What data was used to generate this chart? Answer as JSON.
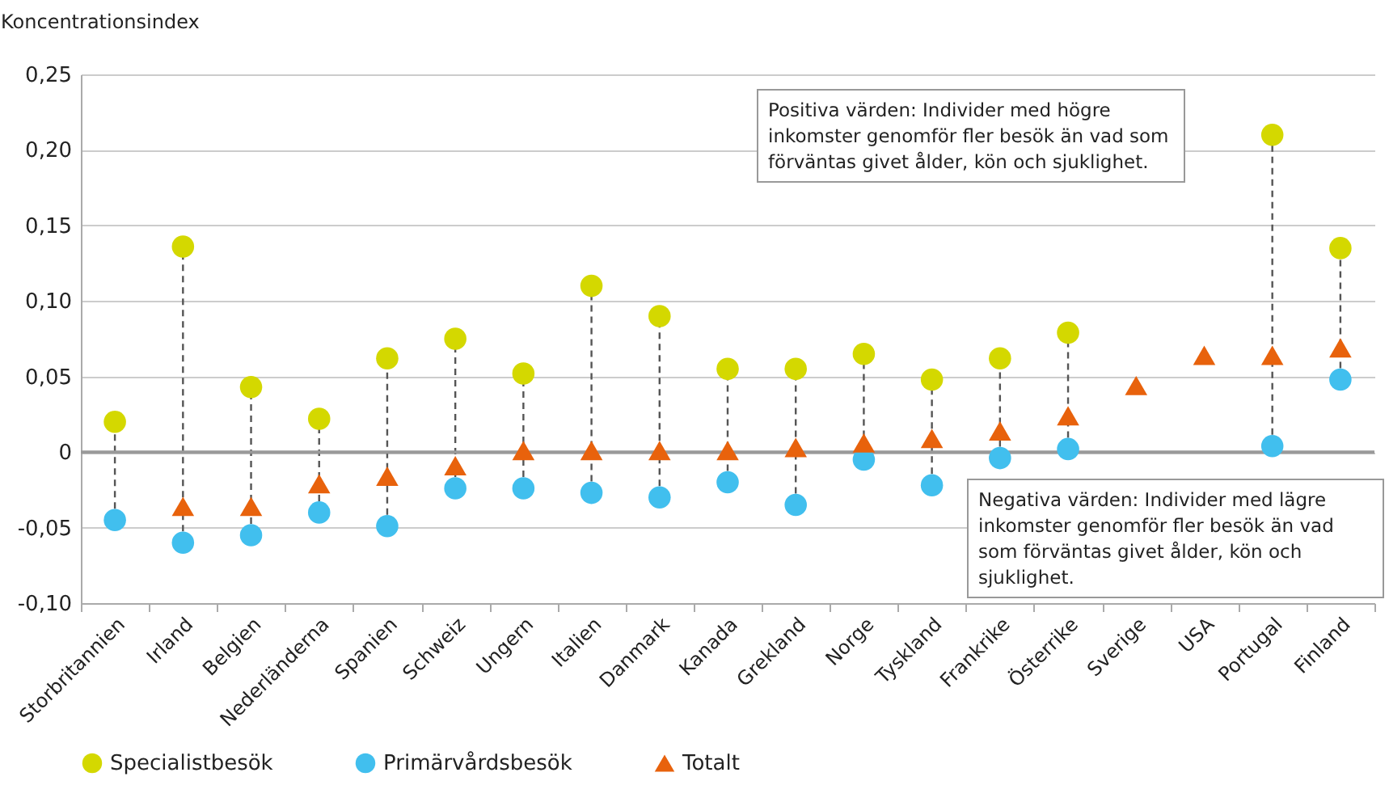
{
  "chart_data": {
    "type": "scatter",
    "ylabel": "Koncentrationsindex",
    "categories": [
      "Storbritannien",
      "Irland",
      "Belgien",
      "Nederländerna",
      "Spanien",
      "Schweiz",
      "Ungern",
      "Italien",
      "Danmark",
      "Kanada",
      "Grekland",
      "Norge",
      "Tyskland",
      "Frankrike",
      "Österrike",
      "Sverige",
      "USA",
      "Portugal",
      "Finland"
    ],
    "series": [
      {
        "name": "Specialistbesök",
        "color": "#d4d800",
        "marker": "circle",
        "values": [
          0.02,
          0.136,
          0.043,
          0.022,
          0.062,
          0.075,
          0.052,
          0.11,
          0.09,
          0.055,
          0.055,
          0.065,
          0.048,
          0.062,
          0.079,
          null,
          null,
          0.21,
          0.135
        ]
      },
      {
        "name": "Primärvårdsbesök",
        "color": "#41bfee",
        "marker": "circle",
        "values": [
          -0.045,
          -0.06,
          -0.055,
          -0.04,
          -0.049,
          -0.024,
          -0.024,
          -0.027,
          -0.03,
          -0.02,
          -0.035,
          -0.005,
          -0.022,
          -0.004,
          0.002,
          null,
          null,
          0.004,
          0.048
        ]
      },
      {
        "name": "Totalt",
        "color": "#e8620c",
        "marker": "triangle",
        "values": [
          null,
          -0.036,
          -0.036,
          -0.021,
          -0.016,
          -0.009,
          0.001,
          0.001,
          0.001,
          0.001,
          0.003,
          0.006,
          0.009,
          0.014,
          0.024,
          0.044,
          0.064,
          0.064,
          0.069
        ]
      }
    ],
    "ylim": [
      -0.1,
      0.25
    ],
    "yticks": [
      {
        "value": -0.1,
        "label": "-0,10"
      },
      {
        "value": -0.05,
        "label": "-0,05"
      },
      0,
      {
        "value": 0.05,
        "label": "0,05"
      },
      {
        "value": 0.1,
        "label": "0,10"
      },
      {
        "value": 0.15,
        "label": "0,15"
      },
      {
        "value": 0.2,
        "label": "0,20"
      },
      {
        "value": 0.25,
        "label": "0,25"
      }
    ],
    "grid": "y",
    "legend": "bottom",
    "ref_lines": [
      {
        "axis": "y",
        "value": 0,
        "color": "#999999"
      }
    ],
    "annotations": [
      "Positiva värden: Individer med högre inkomster genomför fler besök än vad som förväntas givet ålder, kön och sjuklighet.",
      "Negativa värden: Individer med lägre inkomster genomför fler besök än vad som förväntas givet ålder, kön och sjuklighet."
    ]
  }
}
